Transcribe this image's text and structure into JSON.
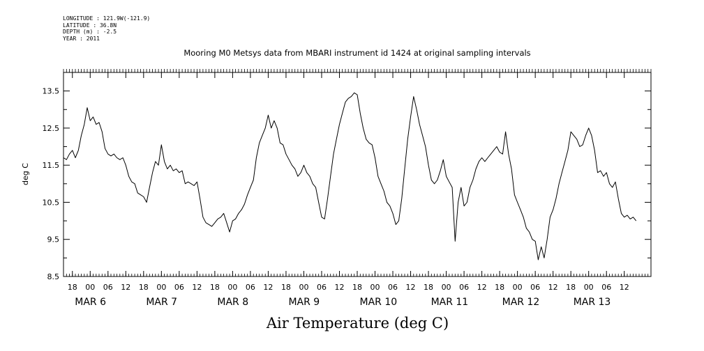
{
  "header": {
    "longitude": "LONGITUDE : 121.9W(-121.9)",
    "latitude": "LATITUDE : 36.8N",
    "depth": "DEPTH (m) : -2.5",
    "year": "YEAR : 2011"
  },
  "chart_data": {
    "type": "line",
    "title": "Mooring M0 Metsys data from MBARI instrument id 1424 at original sampling intervals",
    "xlabel": "Air Temperature (deg C)",
    "ylabel": "deg C",
    "ylim": [
      8.5,
      14.0
    ],
    "yticks": [
      "8.5",
      "9.5",
      "10.5",
      "11.5",
      "12.5",
      "13.5"
    ],
    "xlim": [
      "2011-03-05T15:00",
      "2011-03-13T21:00"
    ],
    "xticks": [
      {
        "label": "18",
        "time": "2011-03-05T18:00"
      },
      {
        "label": "00",
        "time": "2011-03-06T00:00"
      },
      {
        "label": "06",
        "time": "2011-03-06T06:00"
      },
      {
        "label": "12",
        "time": "2011-03-06T12:00"
      },
      {
        "label": "18",
        "time": "2011-03-06T18:00"
      },
      {
        "label": "00",
        "time": "2011-03-07T00:00"
      },
      {
        "label": "06",
        "time": "2011-03-07T06:00"
      },
      {
        "label": "12",
        "time": "2011-03-07T12:00"
      },
      {
        "label": "18",
        "time": "2011-03-07T18:00"
      },
      {
        "label": "00",
        "time": "2011-03-08T00:00"
      },
      {
        "label": "06",
        "time": "2011-03-08T06:00"
      },
      {
        "label": "12",
        "time": "2011-03-08T12:00"
      },
      {
        "label": "18",
        "time": "2011-03-08T18:00"
      },
      {
        "label": "00",
        "time": "2011-03-09T00:00"
      },
      {
        "label": "06",
        "time": "2011-03-09T06:00"
      },
      {
        "label": "12",
        "time": "2011-03-09T12:00"
      },
      {
        "label": "18",
        "time": "2011-03-09T18:00"
      },
      {
        "label": "00",
        "time": "2011-03-10T00:00"
      },
      {
        "label": "06",
        "time": "2011-03-10T06:00"
      },
      {
        "label": "12",
        "time": "2011-03-10T12:00"
      },
      {
        "label": "18",
        "time": "2011-03-10T18:00"
      },
      {
        "label": "00",
        "time": "2011-03-11T00:00"
      },
      {
        "label": "06",
        "time": "2011-03-11T06:00"
      },
      {
        "label": "12",
        "time": "2011-03-11T12:00"
      },
      {
        "label": "18",
        "time": "2011-03-11T18:00"
      },
      {
        "label": "00",
        "time": "2011-03-12T00:00"
      },
      {
        "label": "06",
        "time": "2011-03-12T06:00"
      },
      {
        "label": "12",
        "time": "2011-03-12T12:00"
      },
      {
        "label": "18",
        "time": "2011-03-12T18:00"
      },
      {
        "label": "00",
        "time": "2011-03-13T00:00"
      },
      {
        "label": "06",
        "time": "2011-03-13T06:00"
      },
      {
        "label": "12",
        "time": "2011-03-13T12:00"
      }
    ],
    "date_labels": [
      {
        "label": "MAR  6",
        "time": "2011-03-06T00:00"
      },
      {
        "label": "MAR  7",
        "time": "2011-03-07T00:00"
      },
      {
        "label": "MAR  8",
        "time": "2011-03-08T00:00"
      },
      {
        "label": "MAR  9",
        "time": "2011-03-09T00:00"
      },
      {
        "label": "MAR 10",
        "time": "2011-03-10T00:00"
      },
      {
        "label": "MAR 11",
        "time": "2011-03-11T00:00"
      },
      {
        "label": "MAR 12",
        "time": "2011-03-12T00:00"
      },
      {
        "label": "MAR 13",
        "time": "2011-03-13T00:00"
      }
    ],
    "grid": false,
    "color": "#000000",
    "series": [
      {
        "points": [
          [
            "2011-03-05T15:00",
            11.7
          ],
          [
            "2011-03-05T16:00",
            11.65
          ],
          [
            "2011-03-05T17:00",
            11.8
          ],
          [
            "2011-03-05T18:00",
            11.9
          ],
          [
            "2011-03-05T19:00",
            11.7
          ],
          [
            "2011-03-05T20:00",
            11.9
          ],
          [
            "2011-03-05T21:00",
            12.3
          ],
          [
            "2011-03-05T22:00",
            12.6
          ],
          [
            "2011-03-05T23:00",
            13.05
          ],
          [
            "2011-03-06T00:00",
            12.7
          ],
          [
            "2011-03-06T01:00",
            12.8
          ],
          [
            "2011-03-06T02:00",
            12.6
          ],
          [
            "2011-03-06T03:00",
            12.65
          ],
          [
            "2011-03-06T04:00",
            12.4
          ],
          [
            "2011-03-06T05:00",
            11.95
          ],
          [
            "2011-03-06T06:00",
            11.8
          ],
          [
            "2011-03-06T07:00",
            11.75
          ],
          [
            "2011-03-06T08:00",
            11.8
          ],
          [
            "2011-03-06T09:00",
            11.7
          ],
          [
            "2011-03-06T10:00",
            11.65
          ],
          [
            "2011-03-06T11:00",
            11.7
          ],
          [
            "2011-03-06T12:00",
            11.5
          ],
          [
            "2011-03-06T13:00",
            11.2
          ],
          [
            "2011-03-06T14:00",
            11.05
          ],
          [
            "2011-03-06T15:00",
            11.0
          ],
          [
            "2011-03-06T16:00",
            10.75
          ],
          [
            "2011-03-06T17:00",
            10.7
          ],
          [
            "2011-03-06T18:00",
            10.65
          ],
          [
            "2011-03-06T19:00",
            10.5
          ],
          [
            "2011-03-06T20:00",
            10.9
          ],
          [
            "2011-03-06T21:00",
            11.3
          ],
          [
            "2011-03-06T22:00",
            11.6
          ],
          [
            "2011-03-06T23:00",
            11.5
          ],
          [
            "2011-03-07T00:00",
            12.05
          ],
          [
            "2011-03-07T01:00",
            11.6
          ],
          [
            "2011-03-07T02:00",
            11.4
          ],
          [
            "2011-03-07T03:00",
            11.5
          ],
          [
            "2011-03-07T04:00",
            11.35
          ],
          [
            "2011-03-07T05:00",
            11.4
          ],
          [
            "2011-03-07T06:00",
            11.3
          ],
          [
            "2011-03-07T07:00",
            11.35
          ],
          [
            "2011-03-07T08:00",
            11.0
          ],
          [
            "2011-03-07T09:00",
            11.05
          ],
          [
            "2011-03-07T10:00",
            11.0
          ],
          [
            "2011-03-07T11:00",
            10.95
          ],
          [
            "2011-03-07T12:00",
            11.05
          ],
          [
            "2011-03-07T13:00",
            10.6
          ],
          [
            "2011-03-07T14:00",
            10.1
          ],
          [
            "2011-03-07T15:00",
            9.95
          ],
          [
            "2011-03-07T16:00",
            9.9
          ],
          [
            "2011-03-07T17:00",
            9.85
          ],
          [
            "2011-03-07T18:00",
            9.95
          ],
          [
            "2011-03-07T19:00",
            10.05
          ],
          [
            "2011-03-07T20:00",
            10.1
          ],
          [
            "2011-03-07T21:00",
            10.2
          ],
          [
            "2011-03-07T22:00",
            9.95
          ],
          [
            "2011-03-07T23:00",
            9.7
          ],
          [
            "2011-03-08T00:00",
            10.0
          ],
          [
            "2011-03-08T01:00",
            10.05
          ],
          [
            "2011-03-08T02:00",
            10.2
          ],
          [
            "2011-03-08T03:00",
            10.3
          ],
          [
            "2011-03-08T04:00",
            10.45
          ],
          [
            "2011-03-08T05:00",
            10.7
          ],
          [
            "2011-03-08T06:00",
            10.9
          ],
          [
            "2011-03-08T07:00",
            11.1
          ],
          [
            "2011-03-08T08:00",
            11.7
          ],
          [
            "2011-03-08T09:00",
            12.1
          ],
          [
            "2011-03-08T10:00",
            12.3
          ],
          [
            "2011-03-08T11:00",
            12.5
          ],
          [
            "2011-03-08T12:00",
            12.85
          ],
          [
            "2011-03-08T13:00",
            12.5
          ],
          [
            "2011-03-08T14:00",
            12.7
          ],
          [
            "2011-03-08T15:00",
            12.5
          ],
          [
            "2011-03-08T16:00",
            12.1
          ],
          [
            "2011-03-08T17:00",
            12.05
          ],
          [
            "2011-03-08T18:00",
            11.8
          ],
          [
            "2011-03-08T19:00",
            11.65
          ],
          [
            "2011-03-08T20:00",
            11.5
          ],
          [
            "2011-03-08T21:00",
            11.4
          ],
          [
            "2011-03-08T22:00",
            11.2
          ],
          [
            "2011-03-08T23:00",
            11.3
          ],
          [
            "2011-03-09T00:00",
            11.5
          ],
          [
            "2011-03-09T01:00",
            11.3
          ],
          [
            "2011-03-09T02:00",
            11.2
          ],
          [
            "2011-03-09T03:00",
            11.0
          ],
          [
            "2011-03-09T04:00",
            10.9
          ],
          [
            "2011-03-09T05:00",
            10.5
          ],
          [
            "2011-03-09T06:00",
            10.1
          ],
          [
            "2011-03-09T07:00",
            10.05
          ],
          [
            "2011-03-09T08:00",
            10.6
          ],
          [
            "2011-03-09T09:00",
            11.2
          ],
          [
            "2011-03-09T10:00",
            11.8
          ],
          [
            "2011-03-09T11:00",
            12.2
          ],
          [
            "2011-03-09T12:00",
            12.6
          ],
          [
            "2011-03-09T13:00",
            12.9
          ],
          [
            "2011-03-09T14:00",
            13.2
          ],
          [
            "2011-03-09T15:00",
            13.3
          ],
          [
            "2011-03-09T16:00",
            13.35
          ],
          [
            "2011-03-09T17:00",
            13.45
          ],
          [
            "2011-03-09T18:00",
            13.4
          ],
          [
            "2011-03-09T19:00",
            12.9
          ],
          [
            "2011-03-09T20:00",
            12.5
          ],
          [
            "2011-03-09T21:00",
            12.2
          ],
          [
            "2011-03-09T22:00",
            12.1
          ],
          [
            "2011-03-09T23:00",
            12.05
          ],
          [
            "2011-03-10T00:00",
            11.7
          ],
          [
            "2011-03-10T01:00",
            11.2
          ],
          [
            "2011-03-10T02:00",
            11.0
          ],
          [
            "2011-03-10T03:00",
            10.8
          ],
          [
            "2011-03-10T04:00",
            10.5
          ],
          [
            "2011-03-10T05:00",
            10.4
          ],
          [
            "2011-03-10T06:00",
            10.2
          ],
          [
            "2011-03-10T07:00",
            9.9
          ],
          [
            "2011-03-10T08:00",
            10.0
          ],
          [
            "2011-03-10T09:00",
            10.6
          ],
          [
            "2011-03-10T10:00",
            11.4
          ],
          [
            "2011-03-10T11:00",
            12.2
          ],
          [
            "2011-03-10T12:00",
            12.8
          ],
          [
            "2011-03-10T13:00",
            13.35
          ],
          [
            "2011-03-10T14:00",
            13.0
          ],
          [
            "2011-03-10T15:00",
            12.6
          ],
          [
            "2011-03-10T16:00",
            12.3
          ],
          [
            "2011-03-10T17:00",
            12.0
          ],
          [
            "2011-03-10T18:00",
            11.5
          ],
          [
            "2011-03-10T19:00",
            11.1
          ],
          [
            "2011-03-10T20:00",
            11.0
          ],
          [
            "2011-03-10T21:00",
            11.1
          ],
          [
            "2011-03-10T22:00",
            11.35
          ],
          [
            "2011-03-10T23:00",
            11.65
          ],
          [
            "2011-03-11T00:00",
            11.2
          ],
          [
            "2011-03-11T01:00",
            11.05
          ],
          [
            "2011-03-11T02:00",
            10.9
          ],
          [
            "2011-03-11T03:00",
            9.45
          ],
          [
            "2011-03-11T04:00",
            10.5
          ],
          [
            "2011-03-11T05:00",
            10.9
          ],
          [
            "2011-03-11T06:00",
            10.4
          ],
          [
            "2011-03-11T07:00",
            10.5
          ],
          [
            "2011-03-11T08:00",
            10.9
          ],
          [
            "2011-03-11T09:00",
            11.1
          ],
          [
            "2011-03-11T10:00",
            11.4
          ],
          [
            "2011-03-11T11:00",
            11.6
          ],
          [
            "2011-03-11T12:00",
            11.7
          ],
          [
            "2011-03-11T13:00",
            11.6
          ],
          [
            "2011-03-11T14:00",
            11.7
          ],
          [
            "2011-03-11T15:00",
            11.8
          ],
          [
            "2011-03-11T16:00",
            11.9
          ],
          [
            "2011-03-11T17:00",
            12.0
          ],
          [
            "2011-03-11T18:00",
            11.85
          ],
          [
            "2011-03-11T19:00",
            11.8
          ],
          [
            "2011-03-11T20:00",
            12.4
          ],
          [
            "2011-03-11T21:00",
            11.8
          ],
          [
            "2011-03-11T22:00",
            11.4
          ],
          [
            "2011-03-11T23:00",
            10.7
          ],
          [
            "2011-03-12T00:00",
            10.5
          ],
          [
            "2011-03-12T01:00",
            10.3
          ],
          [
            "2011-03-12T02:00",
            10.1
          ],
          [
            "2011-03-12T03:00",
            9.8
          ],
          [
            "2011-03-12T04:00",
            9.7
          ],
          [
            "2011-03-12T05:00",
            9.5
          ],
          [
            "2011-03-12T06:00",
            9.45
          ],
          [
            "2011-03-12T07:00",
            8.95
          ],
          [
            "2011-03-12T08:00",
            9.3
          ],
          [
            "2011-03-12T09:00",
            9.0
          ],
          [
            "2011-03-12T10:00",
            9.5
          ],
          [
            "2011-03-12T11:00",
            10.1
          ],
          [
            "2011-03-12T12:00",
            10.3
          ],
          [
            "2011-03-12T13:00",
            10.6
          ],
          [
            "2011-03-12T14:00",
            11.0
          ],
          [
            "2011-03-12T15:00",
            11.3
          ],
          [
            "2011-03-12T16:00",
            11.6
          ],
          [
            "2011-03-12T17:00",
            11.9
          ],
          [
            "2011-03-12T18:00",
            12.4
          ],
          [
            "2011-03-12T19:00",
            12.3
          ],
          [
            "2011-03-12T20:00",
            12.2
          ],
          [
            "2011-03-12T21:00",
            12.0
          ],
          [
            "2011-03-12T22:00",
            12.05
          ],
          [
            "2011-03-12T23:00",
            12.3
          ],
          [
            "2011-03-13T00:00",
            12.5
          ],
          [
            "2011-03-13T01:00",
            12.3
          ],
          [
            "2011-03-13T02:00",
            11.9
          ],
          [
            "2011-03-13T03:00",
            11.3
          ],
          [
            "2011-03-13T04:00",
            11.35
          ],
          [
            "2011-03-13T05:00",
            11.2
          ],
          [
            "2011-03-13T06:00",
            11.3
          ],
          [
            "2011-03-13T07:00",
            11.0
          ],
          [
            "2011-03-13T08:00",
            10.9
          ],
          [
            "2011-03-13T09:00",
            11.05
          ],
          [
            "2011-03-13T10:00",
            10.6
          ],
          [
            "2011-03-13T11:00",
            10.2
          ],
          [
            "2011-03-13T12:00",
            10.1
          ],
          [
            "2011-03-13T13:00",
            10.15
          ],
          [
            "2011-03-13T14:00",
            10.05
          ],
          [
            "2011-03-13T15:00",
            10.1
          ],
          [
            "2011-03-13T16:00",
            10.0
          ]
        ]
      }
    ]
  }
}
